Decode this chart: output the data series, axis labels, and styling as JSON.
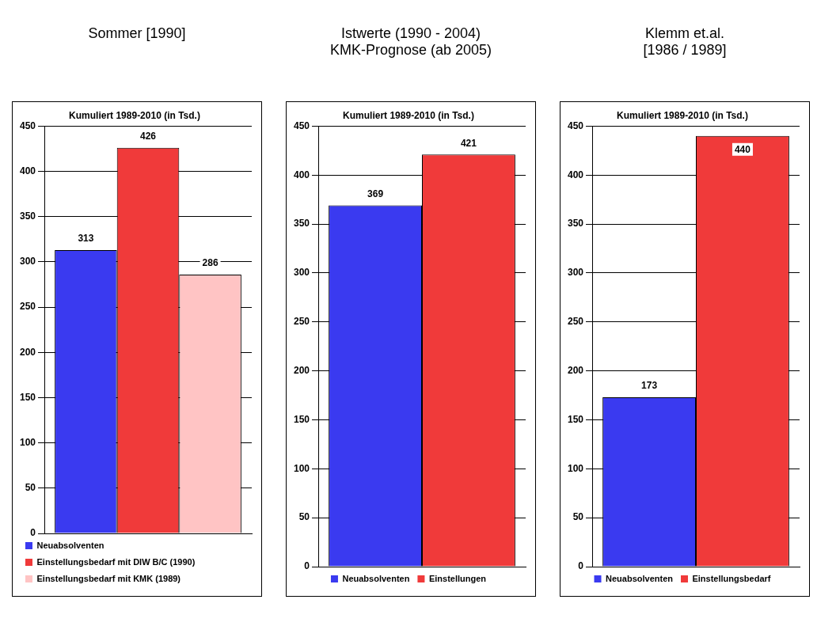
{
  "chart_data": [
    {
      "type": "bar",
      "title": "Sommer [1990]",
      "subtitle": "Kumuliert 1989-2010 (in Tsd.)",
      "categories": [
        null
      ],
      "series": [
        {
          "name": "Neuabsolventen",
          "color": "#3a3af0",
          "values": [
            313
          ]
        },
        {
          "name": "Einstellungsbedarf mit DIW B/C (1990)",
          "color": "#f03a3a",
          "values": [
            426
          ]
        },
        {
          "name": "Einstellungsbedarf mit KMK (1989)",
          "color": "#ffc4c4",
          "values": [
            286
          ]
        }
      ],
      "ylim": [
        0,
        450
      ],
      "yticks": [
        0,
        50,
        100,
        150,
        200,
        250,
        300,
        350,
        400,
        450
      ],
      "grid": "y",
      "legend": "bottom",
      "data_labels": true
    },
    {
      "type": "bar",
      "title": "Istwerte (1990 - 2004)\nKMK-Prognose (ab 2005)",
      "subtitle": "Kumuliert 1989-2010 (in Tsd.)",
      "categories": [
        null
      ],
      "series": [
        {
          "name": "Neuabsolventen",
          "color": "#3a3af0",
          "values": [
            369
          ]
        },
        {
          "name": "Einstellungen",
          "color": "#f03a3a",
          "values": [
            421
          ]
        }
      ],
      "ylim": [
        0,
        450
      ],
      "yticks": [
        0,
        50,
        100,
        150,
        200,
        250,
        300,
        350,
        400,
        450
      ],
      "grid": "y",
      "legend": "bottom",
      "data_labels": true
    },
    {
      "type": "bar",
      "title": "Klemm et.al.\n[1986 / 1989]",
      "subtitle": "Kumuliert 1989-2010 (in Tsd.)",
      "categories": [
        null
      ],
      "series": [
        {
          "name": "Neuabsolventen",
          "color": "#3a3af0",
          "values": [
            173
          ]
        },
        {
          "name": "Einstellungsbedarf",
          "color": "#f03a3a",
          "values": [
            440
          ]
        }
      ],
      "ylim": [
        0,
        450
      ],
      "yticks": [
        0,
        50,
        100,
        150,
        200,
        250,
        300,
        350,
        400,
        450
      ],
      "grid": "y",
      "legend": "bottom",
      "data_labels": true
    }
  ]
}
